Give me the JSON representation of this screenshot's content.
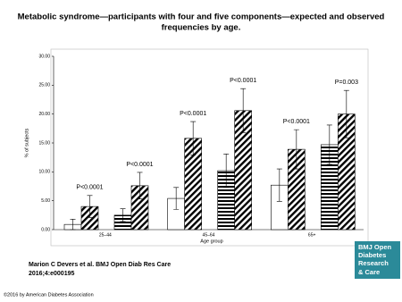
{
  "chart_data": {
    "type": "bar",
    "title": [
      "Metabolic syndrome—participants with four and five components—expected and observed",
      "frequencies by age."
    ],
    "x_label": "Age group",
    "y_label": "% of subjects",
    "categories": [
      "25–44",
      "45–64",
      "65+"
    ],
    "series": [
      {
        "pattern": "none",
        "values": [
          0.9,
          5.4,
          7.7
        ],
        "errors": [
          0.9,
          1.9,
          2.8
        ]
      },
      {
        "pattern": "diagonal",
        "values": [
          4.0,
          15.8,
          13.9
        ],
        "errors": [
          1.9,
          2.9,
          3.4
        ]
      },
      {
        "pattern": "horizontal",
        "values": [
          2.5,
          10.2,
          14.7
        ],
        "errors": [
          1.1,
          2.9,
          3.4
        ]
      },
      {
        "pattern": "diagonal",
        "values": [
          7.6,
          20.6,
          20.0
        ],
        "errors": [
          2.3,
          3.8,
          4.1
        ]
      }
    ],
    "annotations": [
      "P<0.0001",
      "P<0.0001",
      "P<0.0001",
      "P<0.0001",
      "P<0.0001",
      "P=0.003"
    ],
    "ylim": [
      0,
      30
    ],
    "yticks": [
      {
        "value": 0,
        "label": "0.00"
      },
      {
        "value": 5,
        "label": "5.00"
      },
      {
        "value": 10,
        "label": "10.00"
      },
      {
        "value": 15,
        "label": "15.00"
      },
      {
        "value": 20,
        "label": "20.00"
      },
      {
        "value": 25,
        "label": "25.00"
      },
      {
        "value": 30,
        "label": "30.00"
      }
    ],
    "grid": false
  },
  "source": [
    "Marion C Devers et al. BMJ Open Diab Res Care",
    "2016;4:e000195"
  ],
  "copyright": "©2016 by American Diabetes Association",
  "logo": [
    "BMJ Open",
    "Diabetes",
    "Research",
    "& Care"
  ]
}
